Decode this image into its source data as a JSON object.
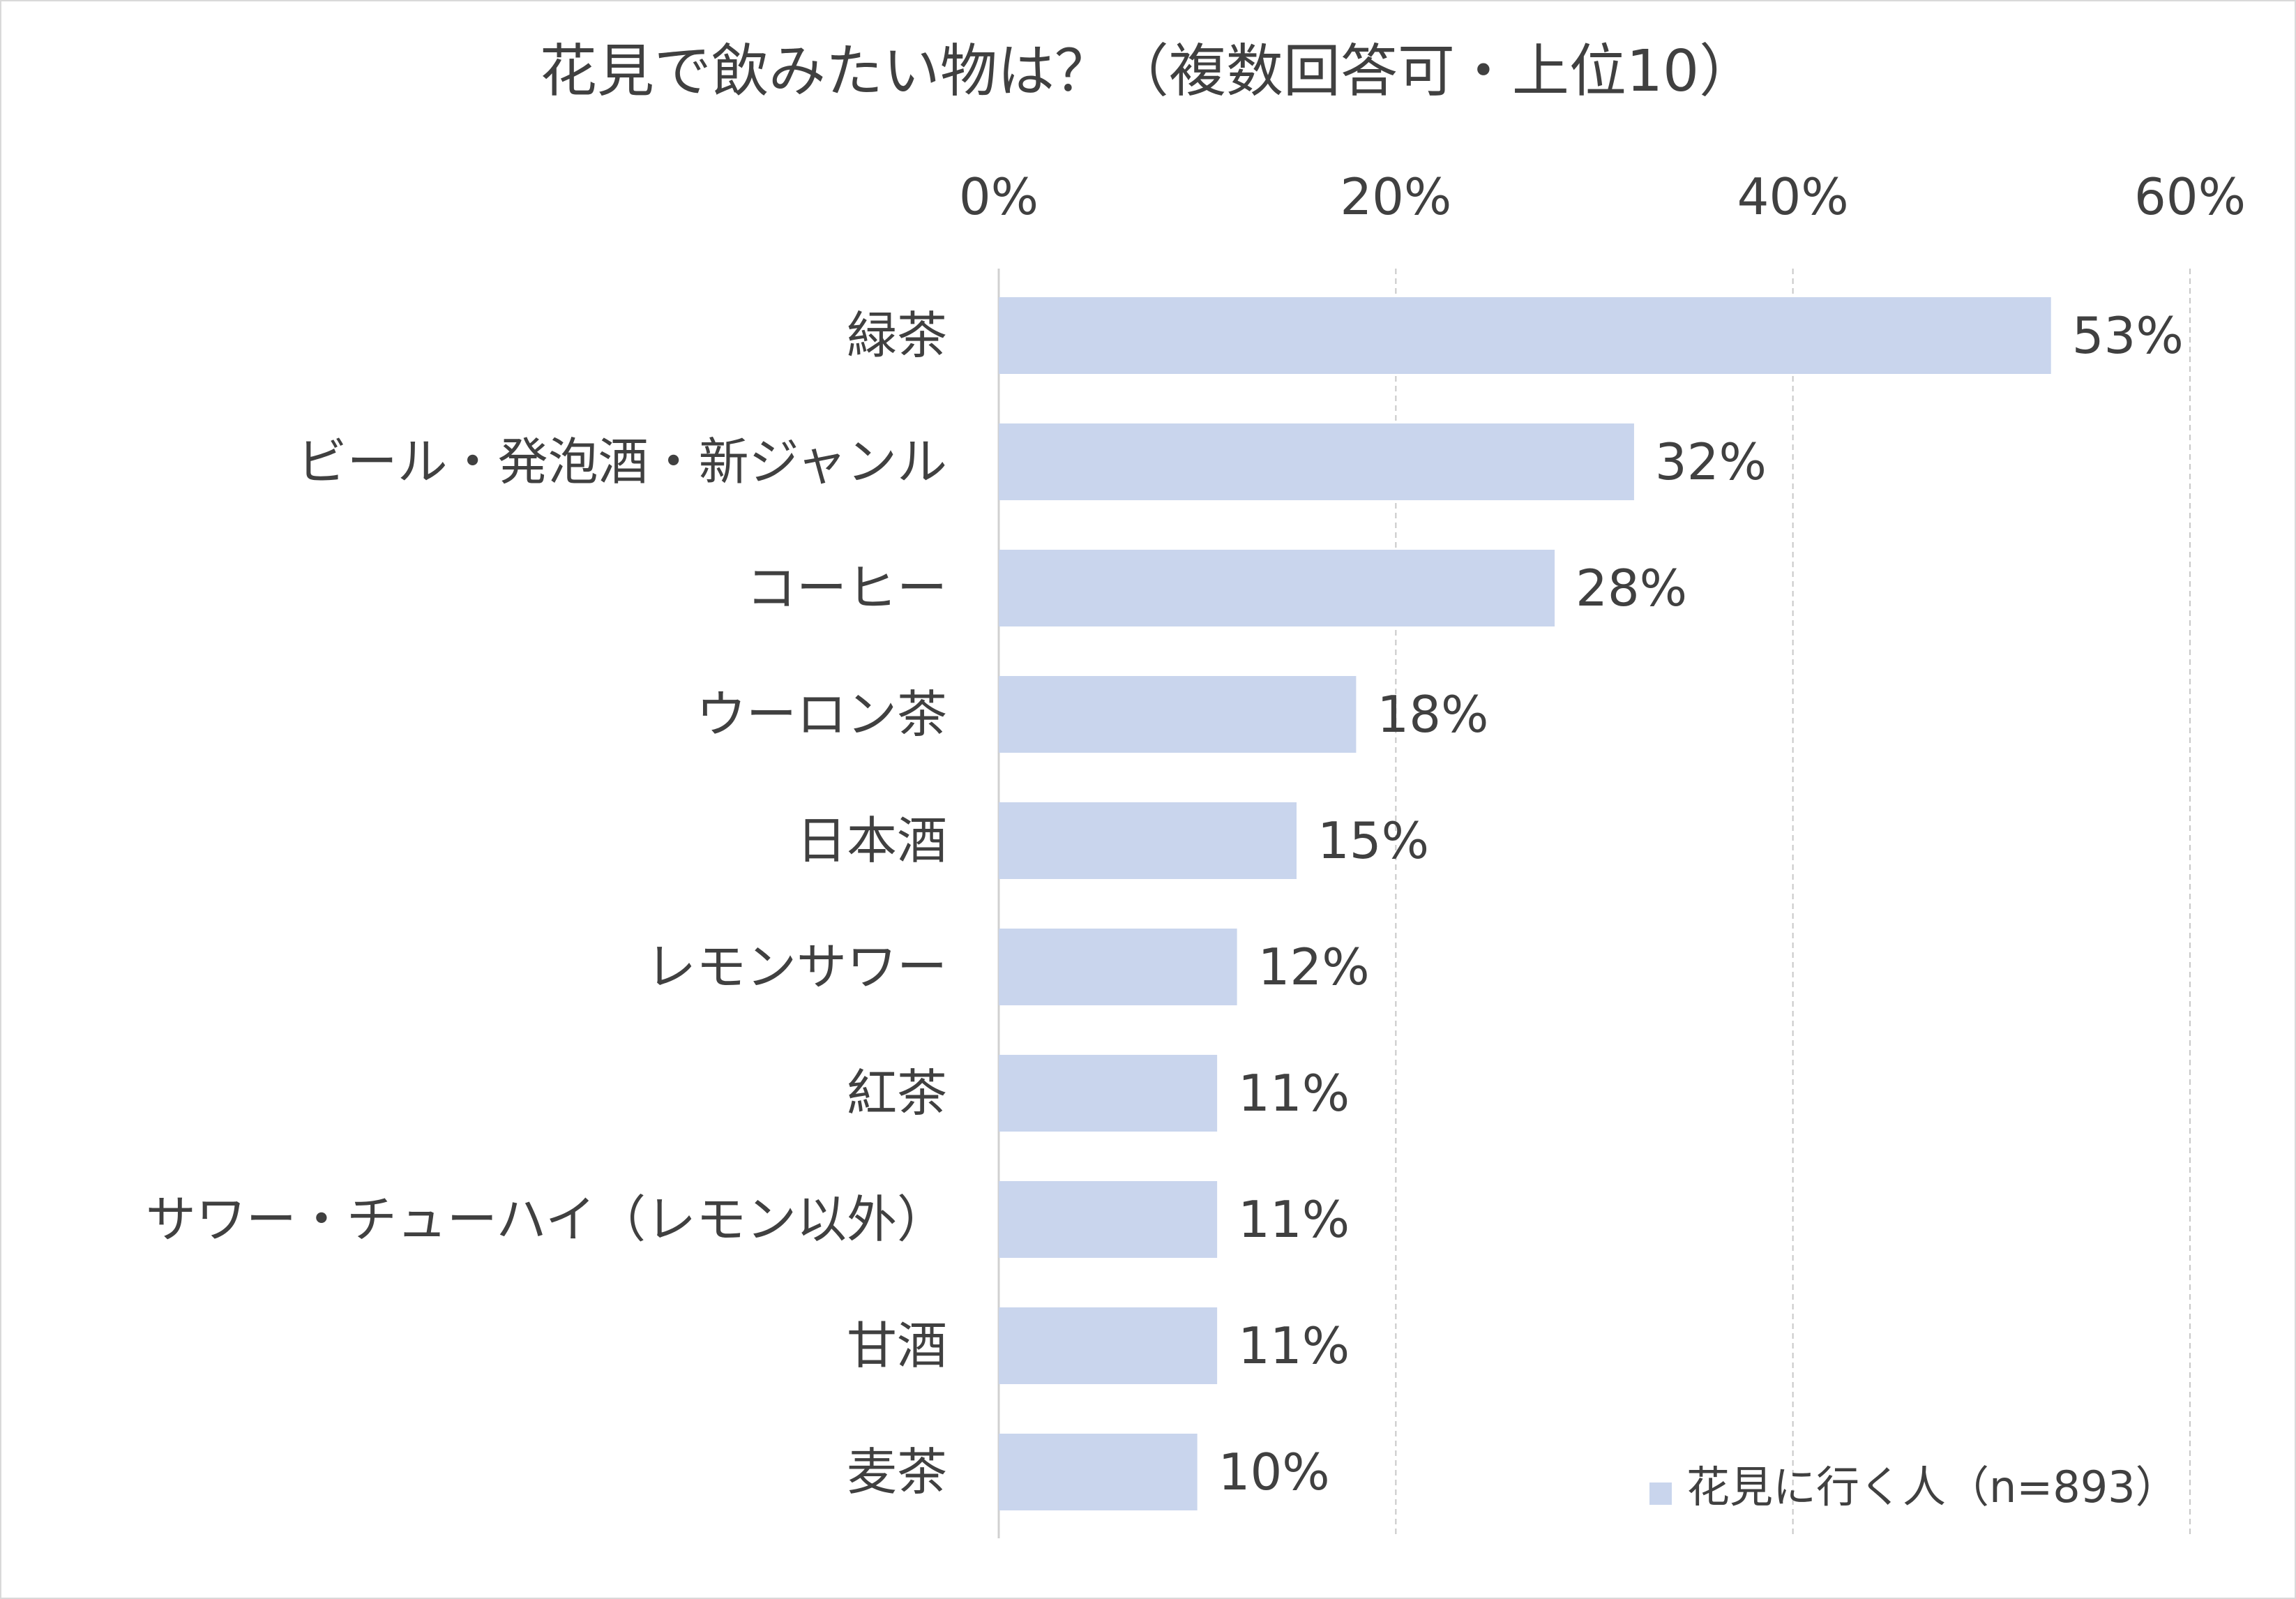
{
  "chart_data": {
    "type": "bar",
    "orientation": "horizontal",
    "title": "花見で飲みたい物は？（複数回答可・上位10）",
    "categories": [
      "緑茶",
      "ビール・発泡酒・新ジャンル",
      "コーヒー",
      "ウーロン茶",
      "日本酒",
      "レモンサワー",
      "紅茶",
      "サワー・チューハイ（レモン以外）",
      "甘酒",
      "麦茶"
    ],
    "series": [
      {
        "name": "花見に行く人（n=893）",
        "values": [
          53,
          32,
          28,
          18,
          15,
          12,
          11,
          11,
          11,
          10
        ],
        "labels": [
          "53%",
          "32%",
          "28%",
          "18%",
          "15%",
          "12%",
          "11%",
          "11%",
          "11%",
          "10%"
        ]
      }
    ],
    "xlim": [
      0,
      60
    ],
    "xticks": [
      0,
      20,
      40,
      60
    ],
    "xtick_labels": [
      "0%",
      "20%",
      "40%",
      "60%"
    ],
    "x_axis_position": "top",
    "grid": "vertical dashed",
    "legend_position": "bottom-right",
    "bar_color": "#c9d5ed"
  }
}
